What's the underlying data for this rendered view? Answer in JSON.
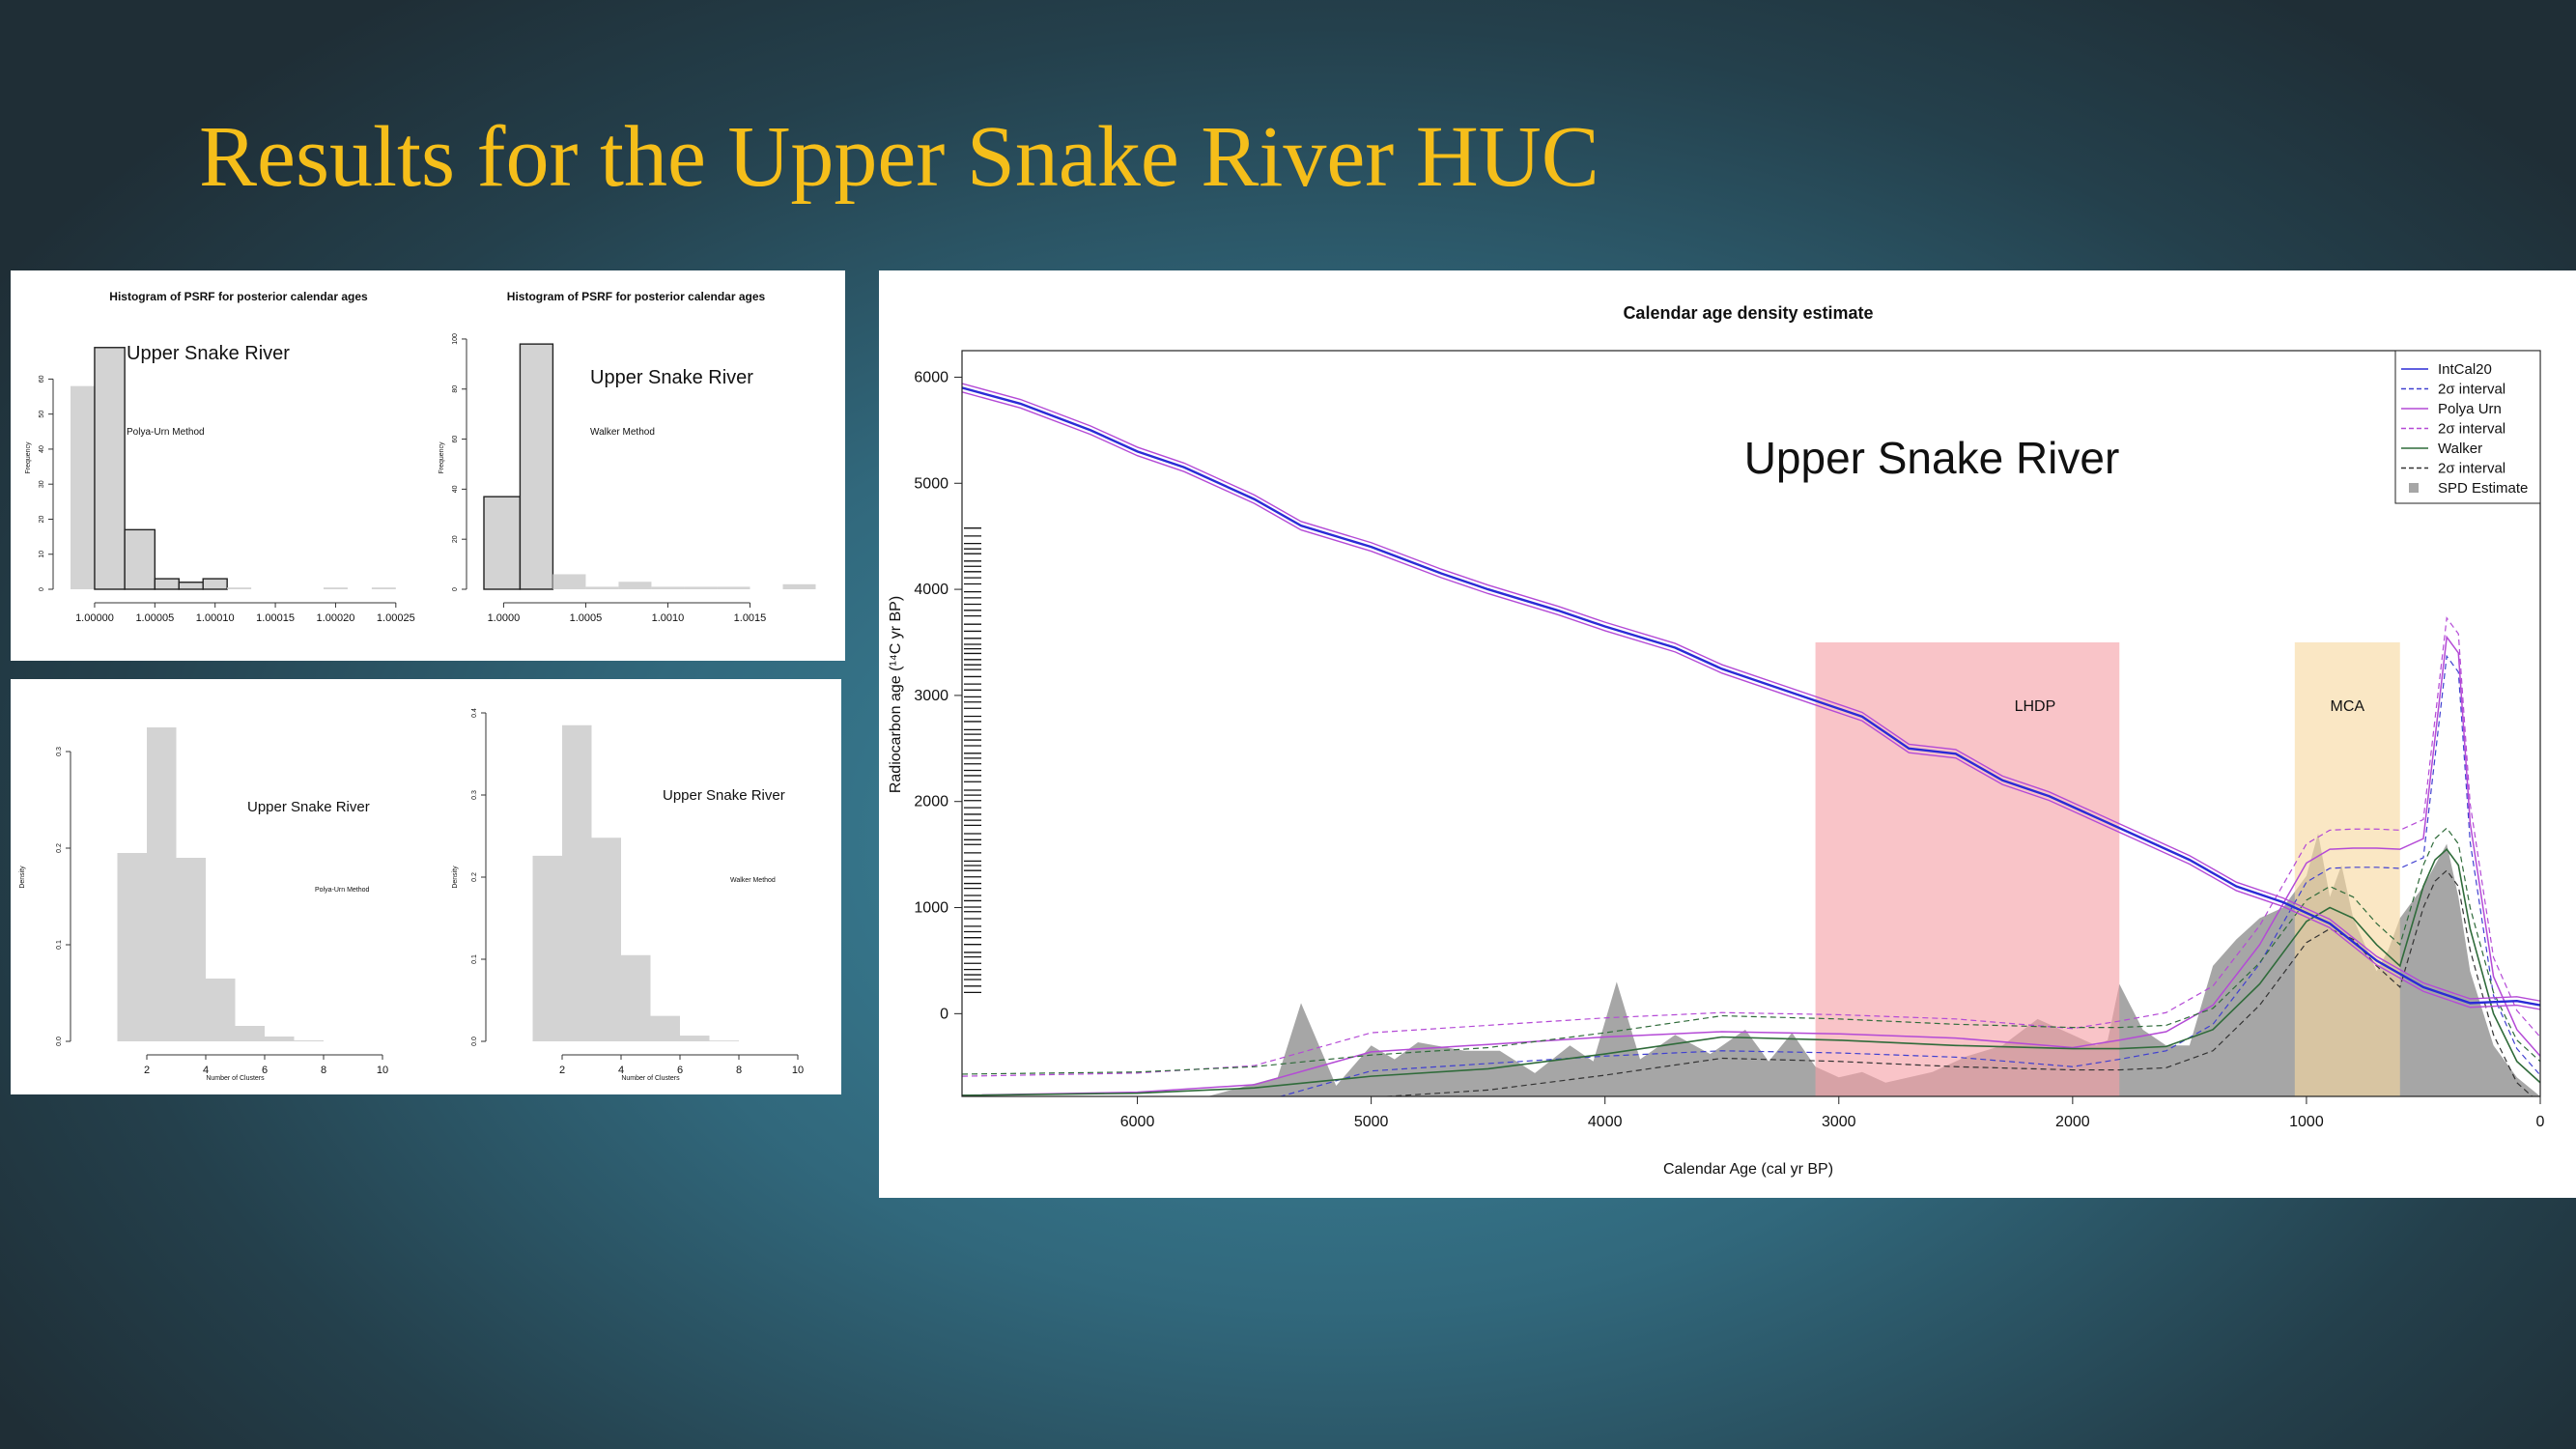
{
  "slide": {
    "title": "Results for the Upper Snake River HUC"
  },
  "colors": {
    "title": "#f5be1a",
    "intcal": "#2b2bd6",
    "polya": "#b44ad6",
    "walker": "#2f6b3a",
    "spd": "#a6a6a6",
    "lhdp": "#f5a0a6",
    "mca": "#f7d9a0",
    "bar": "#d3d3d3"
  },
  "chart_data": [
    {
      "type": "bar",
      "title": "Histogram of PSRF for posterior calendar ages",
      "annotation": "Upper Snake River",
      "method": "Polya-Urn Method",
      "ylabel": "Frequency",
      "xlim": [
        0.99998,
        1.000275
      ],
      "ylim": [
        0,
        75
      ],
      "bin_edges": [
        0.99998,
        1.0,
        1.000025,
        1.00005,
        1.00007,
        1.00009,
        1.00011,
        1.00013,
        1.00015,
        1.00017,
        1.00019,
        1.00021,
        1.00023,
        1.00025,
        1.00027
      ],
      "values": [
        58,
        69,
        17,
        3,
        2,
        3,
        0.5,
        0,
        0,
        0,
        0.5,
        0,
        0.5,
        0
      ],
      "highlight_bins": [
        1,
        2,
        3,
        4,
        5
      ],
      "xticks": [
        "1.00000",
        "1.00005",
        "1.00010",
        "1.00015",
        "1.00020",
        "1.00025"
      ],
      "xtick_values": [
        1.0,
        1.00005,
        1.0001,
        1.00015,
        1.0002,
        1.00025
      ],
      "yticks": [
        "0",
        "10",
        "20",
        "30",
        "40",
        "50",
        "60"
      ],
      "ytick_values": [
        0,
        10,
        20,
        30,
        40,
        50,
        60
      ]
    },
    {
      "type": "bar",
      "title": "Histogram of PSRF for posterior calendar ages",
      "annotation": "Upper Snake River",
      "method": "Walker Method",
      "ylabel": "Frequency",
      "xlim": [
        0.99988,
        1.00185
      ],
      "ylim": [
        0,
        105
      ],
      "bin_edges": [
        0.99988,
        1.0001,
        1.0003,
        1.0005,
        1.0007,
        1.0009,
        1.0011,
        1.0013,
        1.0015,
        1.0017,
        1.0019
      ],
      "values": [
        37,
        98,
        6,
        1,
        3,
        1,
        1,
        1,
        0,
        2
      ],
      "highlight_bins": [
        0,
        1
      ],
      "xticks": [
        "1.0000",
        "1.0005",
        "1.0010",
        "1.0015"
      ],
      "xtick_values": [
        1.0,
        1.0005,
        1.001,
        1.0015
      ],
      "yticks": [
        "0",
        "20",
        "40",
        "60",
        "80",
        "100"
      ],
      "ytick_values": [
        0,
        20,
        40,
        60,
        80,
        100
      ]
    },
    {
      "type": "bar",
      "annotation": "Upper Snake River",
      "method": "Polya-Urn Method",
      "ylabel": "Density",
      "xlabel": "Number of Clusters",
      "xlim": [
        0,
        10
      ],
      "ylim": [
        0,
        0.34
      ],
      "bin_edges": [
        1,
        2,
        3,
        4,
        5,
        6,
        7,
        8
      ],
      "values": [
        0.195,
        0.325,
        0.19,
        0.065,
        0.016,
        0.005,
        0.001
      ],
      "xticks": [
        "2",
        "4",
        "6",
        "8",
        "10"
      ],
      "xtick_values": [
        2,
        4,
        6,
        8,
        10
      ],
      "yticks": [
        "0.0",
        "0.1",
        "0.2",
        "0.3"
      ],
      "ytick_values": [
        0,
        0.1,
        0.2,
        0.3
      ]
    },
    {
      "type": "bar",
      "annotation": "Upper Snake River",
      "method": "Walker Method",
      "ylabel": "Density",
      "xlabel": "Number of Clusters",
      "xlim": [
        0,
        10
      ],
      "ylim": [
        0,
        0.4
      ],
      "bin_edges": [
        1,
        2,
        3,
        4,
        5,
        6,
        7,
        8
      ],
      "values": [
        0.226,
        0.385,
        0.248,
        0.105,
        0.031,
        0.007,
        0.001
      ],
      "xticks": [
        "2",
        "4",
        "6",
        "8",
        "10"
      ],
      "xtick_values": [
        2,
        4,
        6,
        8,
        10
      ],
      "yticks": [
        "0.0",
        "0.1",
        "0.2",
        "0.3",
        "0.4"
      ],
      "ytick_values": [
        0,
        0.1,
        0.2,
        0.3,
        0.4
      ]
    },
    {
      "type": "line",
      "title": "Calendar age density estimate",
      "annotation": "Upper Snake River",
      "xlabel": "Calendar Age (cal yr BP)",
      "ylabel": "Radiocarbon age (¹⁴C yr BP)",
      "xlim": [
        6750,
        0
      ],
      "ylim": [
        -780,
        6250
      ],
      "xticks": [
        6000,
        5000,
        4000,
        3000,
        2000,
        1000,
        0
      ],
      "yticks": [
        0,
        1000,
        2000,
        3000,
        4000,
        5000,
        6000
      ],
      "regions": [
        {
          "label": "LHDP",
          "from": 3100,
          "to": 1800,
          "top": 3500
        },
        {
          "label": "MCA",
          "from": 1050,
          "to": 600,
          "top": 3500
        }
      ],
      "legend_position": "top-right",
      "legend": [
        "IntCal20",
        "2σ interval",
        "Polya Urn",
        "2σ interval",
        "Walker",
        "2σ interval",
        "SPD Estimate"
      ],
      "series": [
        {
          "name": "IntCal20",
          "x": [
            6750,
            6500,
            6200,
            6000,
            5800,
            5500,
            5300,
            5000,
            4700,
            4500,
            4200,
            4000,
            3700,
            3500,
            3100,
            2900,
            2700,
            2500,
            2300,
            2100,
            1900,
            1700,
            1500,
            1300,
            1100,
            900,
            700,
            500,
            300,
            100,
            0
          ],
          "y": [
            5900,
            5750,
            5500,
            5300,
            5150,
            4850,
            4600,
            4400,
            4150,
            4000,
            3800,
            3650,
            3450,
            3250,
            2950,
            2800,
            2500,
            2450,
            2200,
            2050,
            1850,
            1650,
            1450,
            1200,
            1050,
            850,
            500,
            250,
            100,
            120,
            80
          ]
        },
        {
          "name": "Polya Urn",
          "x": [
            6750,
            6000,
            5500,
            5000,
            4500,
            4000,
            3500,
            3000,
            2500,
            2000,
            1800,
            1600,
            1400,
            1200,
            1000,
            900,
            800,
            700,
            600,
            500,
            450,
            400,
            350,
            300,
            200,
            100,
            0
          ],
          "y": [
            -770,
            -740,
            -670,
            -360,
            -290,
            -220,
            -170,
            -190,
            -230,
            -320,
            -250,
            -170,
            80,
            650,
            1420,
            1550,
            1560,
            1560,
            1550,
            1650,
            2600,
            3550,
            3400,
            1800,
            350,
            -150,
            -400
          ]
        },
        {
          "name": "Walker",
          "x": [
            6750,
            6000,
            5500,
            5000,
            4500,
            4000,
            3500,
            3000,
            2500,
            2000,
            1800,
            1600,
            1400,
            1200,
            1000,
            900,
            800,
            700,
            600,
            500,
            450,
            400,
            350,
            300,
            200,
            100,
            0
          ],
          "y": [
            -770,
            -750,
            -700,
            -590,
            -520,
            -380,
            -220,
            -250,
            -300,
            -330,
            -330,
            -310,
            -150,
            280,
            870,
            1000,
            900,
            650,
            450,
            1200,
            1450,
            1550,
            1400,
            800,
            0,
            -450,
            -650
          ]
        }
      ],
      "spd": {
        "x": [
          6750,
          5700,
          5400,
          5300,
          5150,
          5000,
          4900,
          4800,
          4600,
          4450,
          4300,
          4150,
          4050,
          3950,
          3850,
          3700,
          3550,
          3400,
          3300,
          3200,
          3100,
          3000,
          2900,
          2800,
          2600,
          2450,
          2300,
          2150,
          2000,
          1900,
          1850,
          1800,
          1700,
          1600,
          1500,
          1400,
          1300,
          1200,
          1100,
          1000,
          950,
          900,
          850,
          800,
          700,
          650,
          600,
          500,
          450,
          400,
          350,
          300,
          200,
          100,
          0
        ],
        "y": [
          -780,
          -780,
          -600,
          100,
          -680,
          -300,
          -430,
          -270,
          -350,
          -350,
          -560,
          -300,
          -450,
          300,
          -430,
          -200,
          -380,
          -150,
          -450,
          -180,
          -500,
          -600,
          -550,
          -650,
          -550,
          -400,
          -300,
          -50,
          -200,
          -300,
          -250,
          280,
          -150,
          -300,
          -300,
          450,
          700,
          900,
          1000,
          1300,
          1700,
          1100,
          1400,
          900,
          400,
          600,
          900,
          1200,
          1400,
          1600,
          1100,
          400,
          -300,
          -600,
          -780
        ]
      },
      "cal_ages_rug_span": [
        200,
        4600
      ]
    }
  ]
}
